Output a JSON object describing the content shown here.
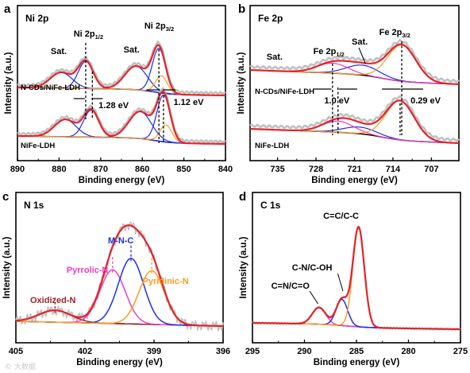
{
  "watermark": "© 大数据",
  "colors": {
    "envelope": "#e4232a",
    "raw": "#c0c0c0",
    "background": "#000000",
    "blue": "#1f2ee6",
    "orange": "#ff9a1f",
    "magenta": "#f13bc0",
    "darkred": "#a0232a",
    "axis": "#000000"
  },
  "chart_data": [
    {
      "id": "a",
      "panel_label": "a",
      "title": "Ni 2p",
      "type": "line",
      "xlabel": "Binding energy (eV)",
      "ylabel": "Intensity (a.u.)",
      "xlim": [
        890,
        840
      ],
      "xticks": [
        890,
        880,
        870,
        860,
        850,
        840
      ],
      "annotations": [
        "Sat.",
        "Ni 2p1/2",
        "Sat.",
        "Ni 2p3/2",
        "1.28 eV",
        "1.12 eV"
      ],
      "series": [
        {
          "name": "N-CDs/NiFe-LDH",
          "offset": 1.0,
          "peaks": [
            {
              "label": "Sat.",
              "center": 879.5,
              "height": 0.32,
              "width": 2.6
            },
            {
              "label": "Ni 2p1/2",
              "center": 873.6,
              "height": 0.55,
              "width": 1.8
            },
            {
              "label": "Sat.",
              "center": 861.5,
              "height": 0.48,
              "width": 2.7
            },
            {
              "label": "Ni 2p3/2",
              "center": 856.0,
              "height": 0.9,
              "width": 1.6
            }
          ]
        },
        {
          "name": "NiFe-LDH",
          "offset": 0.0,
          "peaks": [
            {
              "label": "Sat.",
              "center": 878.5,
              "height": 0.35,
              "width": 2.6
            },
            {
              "label": "Ni 2p1/2",
              "center": 872.3,
              "height": 0.55,
              "width": 1.8
            },
            {
              "label": "Sat.",
              "center": 860.5,
              "height": 0.55,
              "width": 2.7
            },
            {
              "label": "Ni 2p3/2",
              "center": 854.9,
              "height": 0.95,
              "width": 1.6
            }
          ]
        }
      ]
    },
    {
      "id": "b",
      "panel_label": "b",
      "title": "Fe 2p",
      "type": "line",
      "xlabel": "Binding energy (eV)",
      "ylabel": "Intensity (a.u.)",
      "xlim": [
        740,
        702
      ],
      "xticks": [
        735,
        728,
        721,
        714,
        707
      ],
      "annotations": [
        "Sat.",
        "Fe 2p1/2",
        "Sat.",
        "Fe 2p3/2",
        "1.0 eV",
        "0.29 eV"
      ],
      "series": [
        {
          "name": "N-CDs/NiFe-LDH",
          "offset": 1.0,
          "peaks": [
            {
              "label": "Sat.",
              "center": 719.5,
              "height": 0.18,
              "width": 3.0
            },
            {
              "label": "Fe 2p1/2",
              "center": 725.0,
              "height": 0.18,
              "width": 2.8
            },
            {
              "label": "Fe 2p3/2",
              "center": 712.4,
              "height": 0.65,
              "width": 2.6
            }
          ]
        },
        {
          "name": "NiFe-LDH",
          "offset": 0.0,
          "peaks": [
            {
              "label": "Sat.",
              "center": 720.0,
              "height": 0.12,
              "width": 3.0
            },
            {
              "label": "Fe 2p1/2",
              "center": 724.0,
              "height": 0.2,
              "width": 2.8
            },
            {
              "label": "Fe 2p3/2",
              "center": 712.7,
              "height": 0.7,
              "width": 2.6
            }
          ]
        }
      ]
    },
    {
      "id": "c",
      "panel_label": "c",
      "title": "N 1s",
      "type": "line",
      "xlabel": "Binding energy (eV)",
      "ylabel": "Intensity (a.u.)",
      "xlim": [
        405,
        396
      ],
      "xticks": [
        405,
        402,
        399,
        396
      ],
      "peaks": [
        {
          "label": "Oxidized-N",
          "center": 403.3,
          "height": 0.1,
          "width": 0.7,
          "color": "darkred"
        },
        {
          "label": "Pyrrolic-N",
          "center": 400.8,
          "height": 0.45,
          "width": 0.55,
          "color": "magenta"
        },
        {
          "label": "M-N-C",
          "center": 400.0,
          "height": 0.55,
          "width": 0.55,
          "color": "blue"
        },
        {
          "label": "Pyridinic-N",
          "center": 399.1,
          "height": 0.45,
          "width": 0.55,
          "color": "orange"
        }
      ]
    },
    {
      "id": "d",
      "panel_label": "d",
      "title": "C 1s",
      "type": "line",
      "xlabel": "Binding energy (eV)",
      "ylabel": "Intensity (a.u.)",
      "xlim": [
        295,
        275
      ],
      "xticks": [
        295,
        290,
        285,
        280,
        275
      ],
      "peaks": [
        {
          "label": "C=N/C=O",
          "center": 288.6,
          "height": 0.16,
          "width": 0.65,
          "color": "magenta"
        },
        {
          "label": "C-N/C-OH",
          "center": 286.4,
          "height": 0.25,
          "width": 0.55,
          "color": "blue"
        },
        {
          "label": "C=C/C-C",
          "center": 284.8,
          "height": 0.95,
          "width": 0.55,
          "color": "orange"
        }
      ]
    }
  ]
}
